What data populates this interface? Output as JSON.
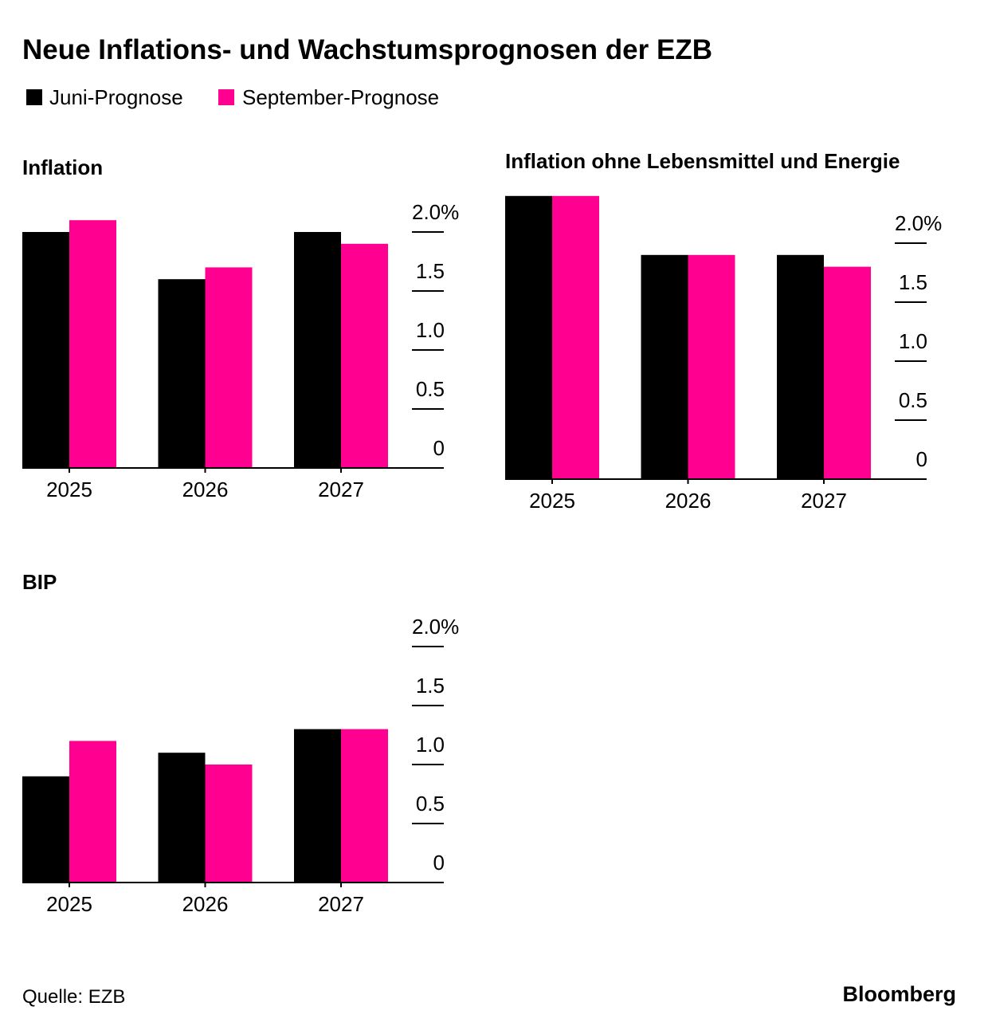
{
  "title": "Neue Inflations- und Wachstumsprognosen der EZB",
  "legend": [
    {
      "name": "Juni-Prognose",
      "color": "#000000"
    },
    {
      "name": "September-Prognose",
      "color": "#ff0090"
    }
  ],
  "chart_data": [
    {
      "type": "bar",
      "title": "Inflation",
      "categories": [
        "2025",
        "2026",
        "2027"
      ],
      "series": [
        {
          "values": [
            2.0,
            1.6,
            2.0
          ]
        },
        {
          "values": [
            2.1,
            1.7,
            1.9
          ]
        }
      ],
      "ylim": [
        0,
        2.2
      ],
      "yticks": [
        0,
        0.5,
        {
          "value": 1,
          "label": "1.0"
        },
        1.5,
        {
          "value": 2,
          "label": "2.0%"
        }
      ]
    },
    {
      "type": "bar",
      "title": "Inflation ohne Lebensmittel und Energie",
      "categories": [
        "2025",
        "2026",
        "2027"
      ],
      "series": [
        {
          "values": [
            2.4,
            1.9,
            1.9
          ]
        },
        {
          "values": [
            2.4,
            1.9,
            1.8
          ]
        }
      ],
      "ylim": [
        0,
        2.4
      ],
      "yticks": [
        0,
        0.5,
        {
          "value": 1,
          "label": "1.0"
        },
        1.5,
        {
          "value": 2,
          "label": "2.0%"
        }
      ]
    },
    {
      "type": "bar",
      "title": "BIP",
      "categories": [
        "2025",
        "2026",
        "2027"
      ],
      "series": [
        {
          "values": [
            0.9,
            1.1,
            1.3
          ]
        },
        {
          "values": [
            1.2,
            1.0,
            1.3
          ]
        }
      ],
      "ylim": [
        0,
        2.2
      ],
      "yticks": [
        0,
        0.5,
        {
          "value": 1,
          "label": "1.0"
        },
        1.5,
        {
          "value": 2,
          "label": "2.0%"
        }
      ]
    }
  ],
  "source": "Quelle: EZB",
  "brand": "Bloomberg"
}
